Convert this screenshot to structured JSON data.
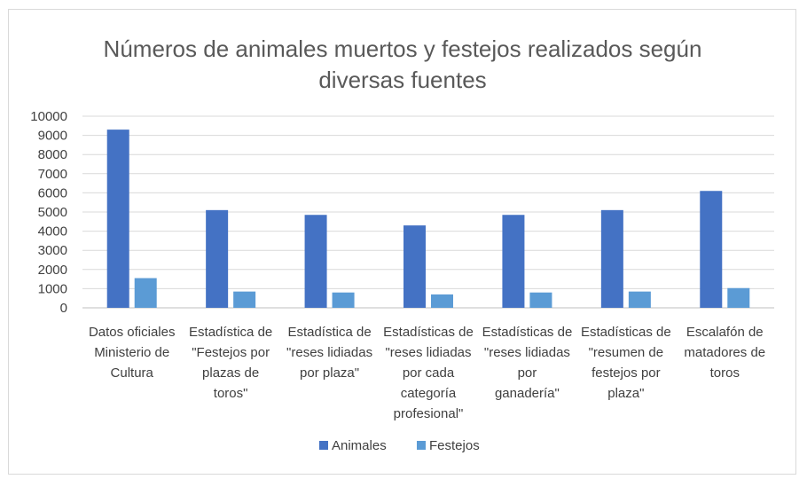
{
  "chart_data": {
    "type": "bar",
    "title": "Números de animales muertos y festejos realizados según diversas fuentes",
    "title_lines": [
      "Números de animales muertos y festejos realizados según",
      "diversas fuentes"
    ],
    "categories": [
      "Datos oficiales Ministerio de Cultura",
      "Estadística de \"Festejos por plazas de toros\"",
      "Estadística de \"reses lidiadas por plaza\"",
      "Estadísticas de \"reses lidiadas por cada categoría profesional\"",
      "Estadísticas de \"reses lidiadas por ganadería\"",
      "Estadísticas de \"resumen de festejos por plaza\"",
      "Escalafón de matadores de toros"
    ],
    "category_lines": [
      [
        "Datos oficiales",
        "Ministerio de",
        "Cultura"
      ],
      [
        "Estadística de",
        "\"Festejos por",
        "plazas de",
        "toros\""
      ],
      [
        "Estadística de",
        "\"reses lidiadas",
        "por plaza\""
      ],
      [
        "Estadísticas de",
        "\"reses lidiadas",
        "por cada",
        "categoría",
        "profesional\""
      ],
      [
        "Estadísticas de",
        "\"reses lidiadas",
        "por",
        "ganadería\""
      ],
      [
        "Estadísticas de",
        "\"resumen de",
        "festejos por",
        "plaza\""
      ],
      [
        "Escalafón de",
        "matadores de",
        "toros"
      ]
    ],
    "series": [
      {
        "name": "Animales",
        "color": "#4472c4",
        "values": [
          9300,
          5100,
          4850,
          4300,
          4850,
          5100,
          6100
        ]
      },
      {
        "name": "Festejos",
        "color": "#5b9bd5",
        "values": [
          1550,
          850,
          800,
          700,
          800,
          850,
          1030
        ]
      }
    ],
    "ylim": [
      0,
      10000
    ],
    "yticks": [
      0,
      1000,
      2000,
      3000,
      4000,
      5000,
      6000,
      7000,
      8000,
      9000,
      10000
    ],
    "xlabel": "",
    "ylabel": "",
    "grid": true,
    "legend": "bottom-center"
  }
}
